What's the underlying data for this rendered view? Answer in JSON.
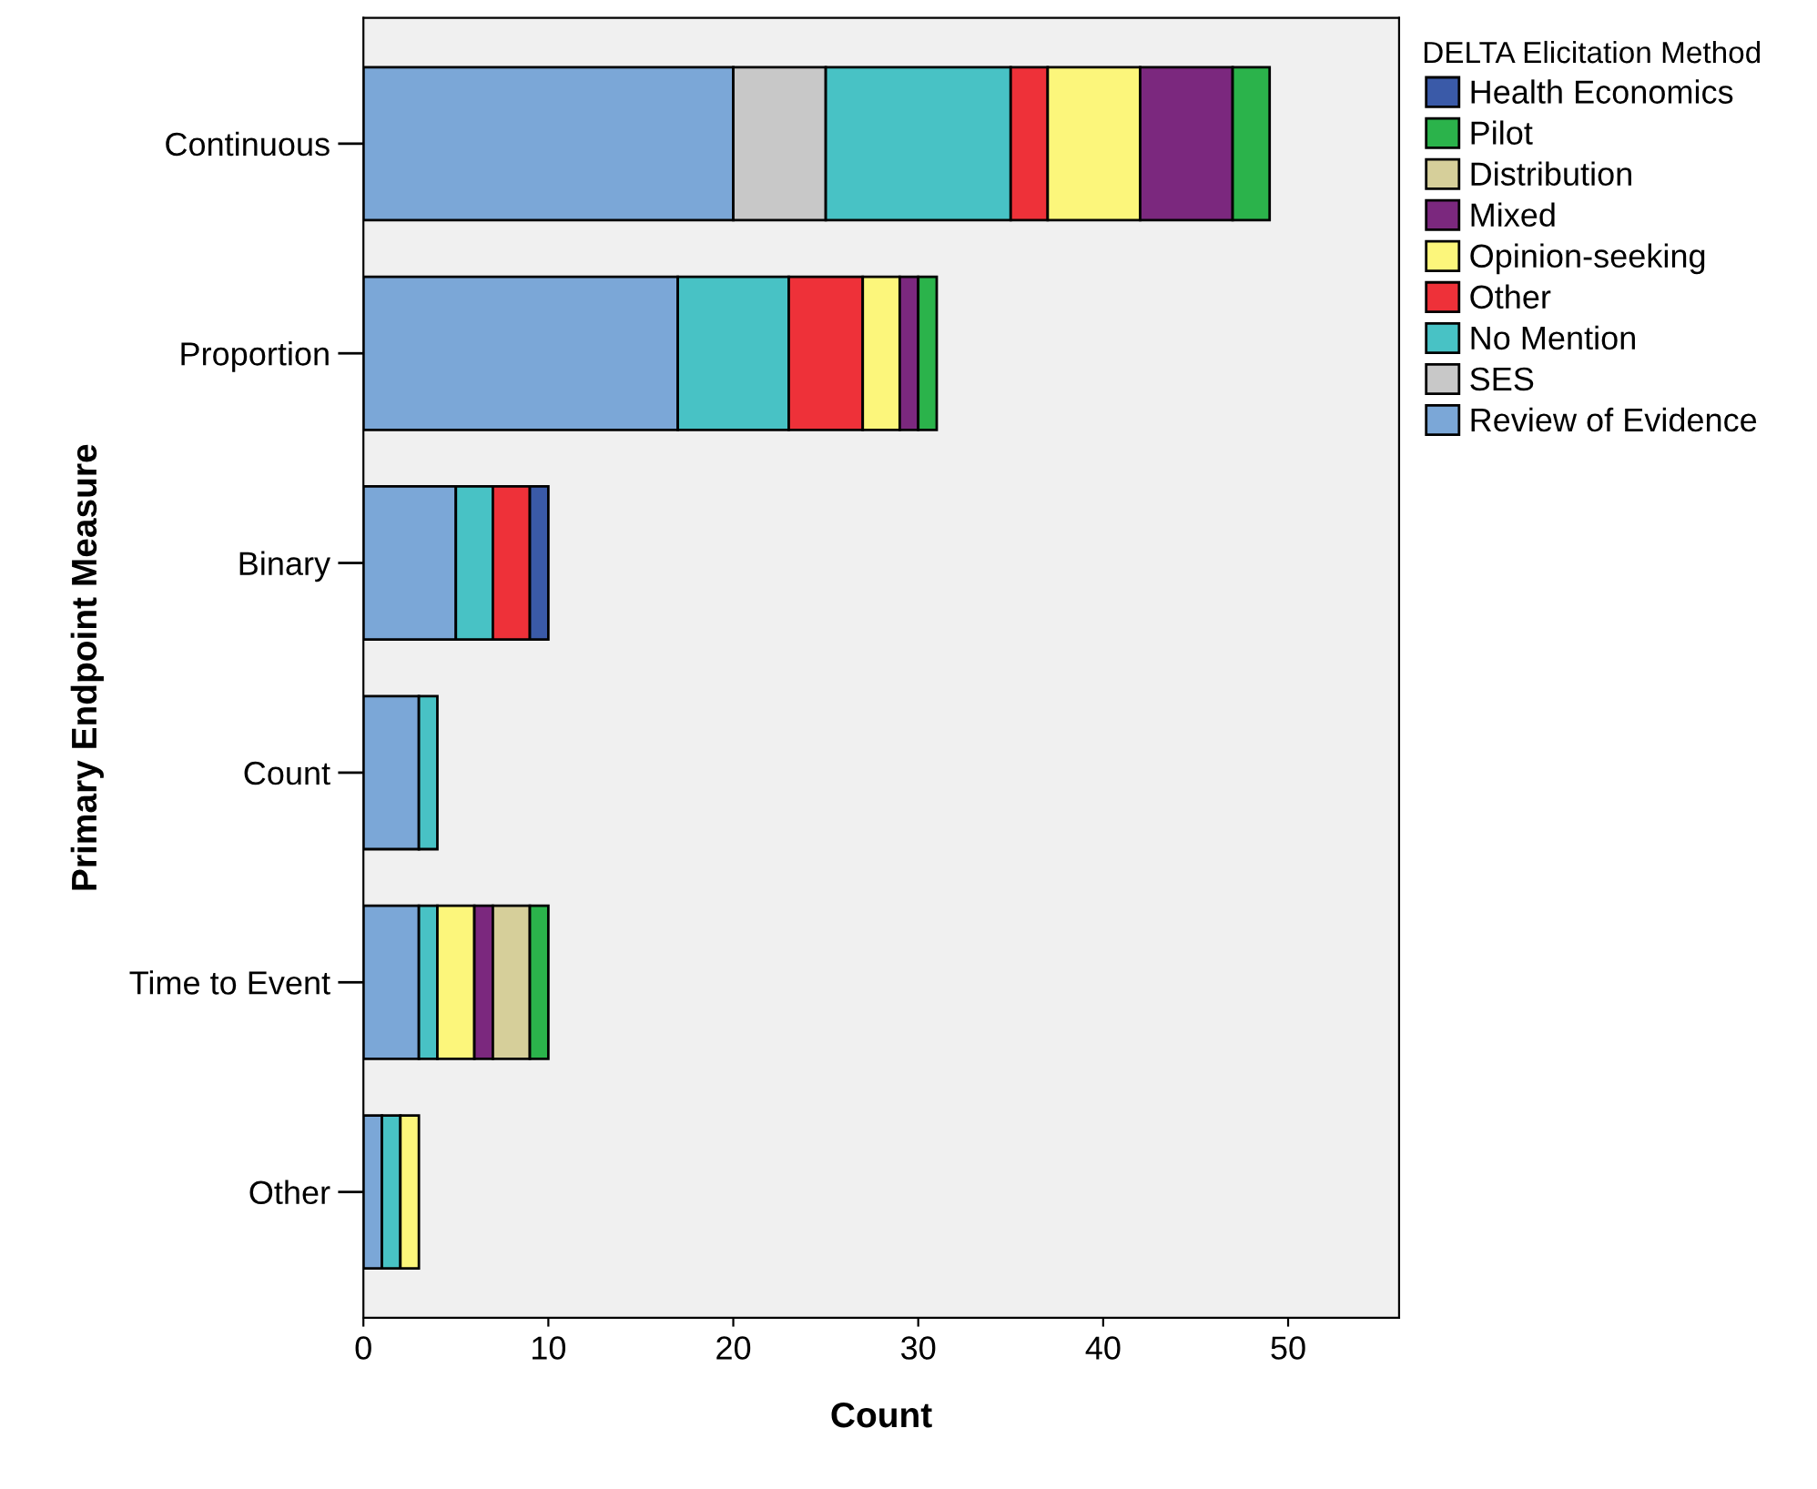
{
  "chart_data": {
    "type": "bar",
    "orientation": "horizontal",
    "stacked": true,
    "xlabel": "Count",
    "ylabel": "Primary Endpoint Measure",
    "legend_title": "DELTA Elicitation Method",
    "legend": "right",
    "grid": false,
    "xlim": [
      0,
      56
    ],
    "xticks": [
      0,
      10,
      20,
      30,
      40,
      50
    ],
    "categories": [
      "Continuous",
      "Proportion",
      "Binary",
      "Count",
      "Time to Event",
      "Other"
    ],
    "series": [
      {
        "name": "Review of Evidence",
        "color": "#7ba7d7",
        "values": [
          20,
          17,
          5,
          3,
          3,
          1
        ]
      },
      {
        "name": "SES",
        "color": "#c8c8c8",
        "values": [
          5,
          null,
          null,
          null,
          null,
          null
        ]
      },
      {
        "name": "No Mention",
        "color": "#48c2c5",
        "values": [
          10,
          6,
          2,
          1,
          1,
          1
        ]
      },
      {
        "name": "Other",
        "color": "#ee3139",
        "values": [
          2,
          4,
          2,
          null,
          null,
          null
        ]
      },
      {
        "name": "Opinion-seeking",
        "color": "#fcf67b",
        "values": [
          5,
          2,
          null,
          null,
          2,
          1
        ]
      },
      {
        "name": "Mixed",
        "color": "#7b287e",
        "values": [
          5,
          1,
          null,
          null,
          1,
          null
        ]
      },
      {
        "name": "Distribution",
        "color": "#d6cf9a",
        "values": [
          null,
          null,
          null,
          null,
          2,
          null
        ]
      },
      {
        "name": "Pilot",
        "color": "#2bb34b",
        "values": [
          2,
          1,
          null,
          null,
          1,
          null
        ]
      },
      {
        "name": "Health Economics",
        "color": "#3a5aa8",
        "values": [
          null,
          null,
          1,
          null,
          null,
          null
        ]
      }
    ]
  }
}
